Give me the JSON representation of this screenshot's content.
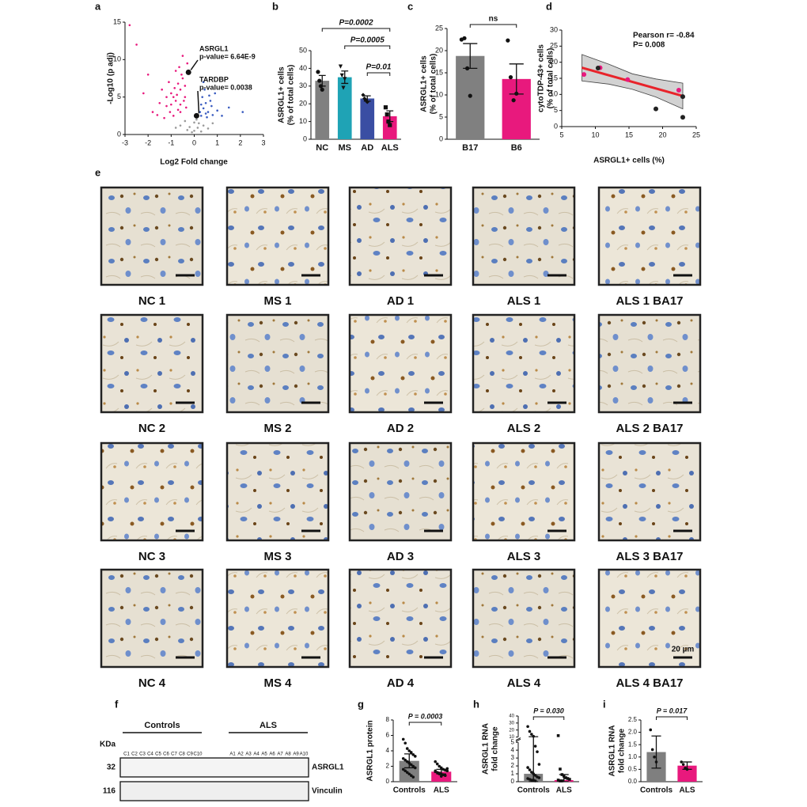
{
  "chart_data": [
    {
      "panel": "a",
      "type": "volcano",
      "xlabel": "Log2 Fold change",
      "ylabel": [
        "-Log10 (p adj)"
      ],
      "xlim": [
        -3,
        3
      ],
      "xticks": [
        -3,
        -2,
        -1,
        0,
        1,
        2,
        3
      ],
      "ylim": [
        0,
        15
      ],
      "yticks": [
        0,
        5,
        10,
        15
      ],
      "series": [
        {
          "color": "#e8197d",
          "x": [
            -0.6,
            -0.8,
            -1.0,
            -0.7,
            -0.5,
            -1.2,
            -1.5,
            -0.9,
            -0.4,
            -0.6,
            -1.8,
            -1.1,
            -0.8,
            -0.3,
            -0.5,
            -2.2,
            -2.5,
            -1.3,
            -0.6,
            -0.7,
            -1.0,
            -0.4,
            -0.9,
            -1.4,
            -2.0,
            -0.55,
            -0.35,
            -1.6,
            -0.75,
            -1.2,
            -0.45,
            -2.8,
            -0.65,
            -1.05,
            -0.85
          ],
          "y": [
            3,
            4.5,
            5.5,
            6.8,
            7.5,
            3.8,
            4.2,
            2.5,
            5,
            6,
            3,
            7,
            8.5,
            9.5,
            10.5,
            5.5,
            12,
            2.2,
            4,
            3.3,
            4,
            6.5,
            5,
            6,
            8,
            8,
            3.6,
            2.6,
            5.3,
            5,
            4.5,
            14.6,
            9,
            3,
            6.2
          ]
        },
        {
          "color": "#3a5cc0",
          "x": [
            0.3,
            0.4,
            0.5,
            0.6,
            0.8,
            0.35,
            0.7,
            1.0,
            0.45,
            0.3,
            0.55,
            1.2,
            0.9,
            0.25,
            0.65,
            1.5,
            0.4,
            0.5,
            0.75,
            2.1
          ],
          "y": [
            2.5,
            3.5,
            4.2,
            3,
            2.6,
            5,
            4.5,
            3.2,
            6,
            4,
            2.3,
            2.5,
            5.5,
            3,
            5.2,
            3.6,
            7,
            2.8,
            3.8,
            3
          ]
        },
        {
          "color": "#9a9a9a",
          "x": [
            -0.2,
            0,
            0.2,
            -0.4,
            0.4,
            0.1,
            -0.1,
            0.6,
            -0.6,
            0.3,
            -0.3,
            0.8,
            -0.8,
            0,
            0.15
          ],
          "y": [
            1,
            0.5,
            1.5,
            1.8,
            1.2,
            2,
            0.3,
            0.8,
            1.2,
            0.4,
            0.6,
            1.5,
            0.9,
            1.6,
            0.9
          ]
        }
      ],
      "highlights": [
        {
          "name": "ASRGL1",
          "label": "p-value= 6.64E-9",
          "x": -0.25,
          "y": 8.3
        },
        {
          "name": "TARDBP",
          "label": "p-value= 0.0038",
          "x": 0.1,
          "y": 2.5
        }
      ]
    },
    {
      "panel": "b",
      "type": "bar",
      "ylabel": [
        "ASRGL1+ cells",
        "(% of total cells)"
      ],
      "categories": [
        "NC",
        "MS",
        "AD",
        "ALS"
      ],
      "values": [
        33,
        35,
        23,
        13
      ],
      "errors": [
        3,
        3.5,
        1.5,
        3
      ],
      "colors": [
        "#808080",
        "#1fa3b5",
        "#3a4ea3",
        "#e8197d"
      ],
      "markers": [
        "circle",
        "triangle",
        "diamond",
        "square"
      ],
      "points": [
        [
          38,
          33,
          30,
          28
        ],
        [
          41,
          36,
          29,
          34
        ],
        [
          25,
          23,
          22,
          21
        ],
        [
          18,
          14,
          10,
          8
        ]
      ],
      "ylim": [
        0,
        50
      ],
      "yticks": [
        0,
        10,
        20,
        30,
        40,
        50
      ],
      "comparisons": [
        {
          "between": [
            "NC",
            "ALS"
          ],
          "label": "P=0.0002"
        },
        {
          "between": [
            "MS",
            "ALS"
          ],
          "label": "P=0.0005"
        },
        {
          "between": [
            "AD",
            "ALS"
          ],
          "label": "P=0.01"
        }
      ]
    },
    {
      "panel": "c",
      "type": "bar",
      "ylabel": [
        "ASRGL1+ cells",
        "(% of total cells)"
      ],
      "categories": [
        "B17",
        "B6"
      ],
      "values": [
        18.8,
        13.6
      ],
      "errors": [
        2.8,
        3.4
      ],
      "colors": [
        "#808080",
        "#e8197d"
      ],
      "markers": [
        "circle",
        "circle"
      ],
      "points": [
        [
          22.5,
          22.8,
          16,
          9.8
        ],
        [
          22.3,
          14,
          8.8,
          10.3
        ]
      ],
      "ylim": [
        0,
        25
      ],
      "yticks": [
        0,
        5,
        10,
        15,
        20,
        25
      ],
      "comparisons": [
        {
          "between": [
            "B17",
            "B6"
          ],
          "label": "ns"
        }
      ]
    },
    {
      "panel": "d",
      "type": "scatter",
      "xlabel": "ASRGL1+ cells (%)",
      "ylabel": [
        "cytoTDP-43+ cells",
        "(% of total cells)"
      ],
      "xlim": [
        5,
        25
      ],
      "xticks": [
        5,
        10,
        15,
        20,
        25
      ],
      "ylim": [
        0,
        30
      ],
      "yticks": [
        0,
        5,
        10,
        15,
        20,
        25,
        30
      ],
      "annotations": [
        "Pearson r= -0.84",
        "P= 0.008"
      ],
      "series": [
        {
          "color": "#e8197d",
          "x": [
            8.3,
            10.7,
            14.8,
            22.4
          ],
          "y": [
            16.2,
            18.3,
            14.6,
            11.3
          ]
        },
        {
          "color": "#222222",
          "x": [
            10.4,
            19.0,
            23.0,
            23.0
          ],
          "y": [
            18.2,
            5.5,
            9.3,
            2.9
          ]
        }
      ],
      "fit": {
        "color": "#e8232a",
        "x": [
          8,
          23
        ],
        "y": [
          18.3,
          9.5
        ]
      },
      "fit_band": {
        "x": [
          8,
          12,
          15.5,
          19,
          23
        ],
        "lower": [
          14.2,
          13.2,
          11.6,
          9.2,
          5.5
        ],
        "upper": [
          22.4,
          19.4,
          16.4,
          14.8,
          13.5
        ]
      }
    },
    {
      "panel": "g",
      "type": "bar",
      "ylabel": [
        "ASRGL1 protein"
      ],
      "categories": [
        "Controls",
        "ALS"
      ],
      "values": [
        2.7,
        1.3
      ],
      "errors": [
        0.9,
        0.3
      ],
      "colors": [
        "#7f7f7f",
        "#e8197d"
      ],
      "markers": [
        "circle",
        "circle"
      ],
      "points": [
        [
          5.5,
          5,
          4.3,
          4,
          3.8,
          3.5,
          3.3,
          3,
          2.8,
          2.6,
          2.4,
          2.2,
          2,
          1.8,
          1.6,
          1.4,
          1.2,
          1,
          0.8,
          0.6
        ],
        [
          2.6,
          2.3,
          2,
          1.8,
          1.6,
          1.5,
          1.4,
          1.3,
          1.2,
          1.1,
          1,
          0.9,
          0.8,
          1.7,
          1.4,
          1.2,
          1.0,
          0.7
        ]
      ],
      "ylim": [
        0,
        8
      ],
      "yticks": [
        0,
        2,
        4,
        6,
        8
      ],
      "comparisons": [
        {
          "between": [
            "Controls",
            "ALS"
          ],
          "label": "P = 0.0003"
        }
      ]
    },
    {
      "panel": "h",
      "type": "bar",
      "ylabel": [
        "ASRGL1 RNA",
        "fold change"
      ],
      "categories": [
        "Controls",
        "ALS"
      ],
      "values": [
        1.0,
        0.2
      ],
      "errors": [
        [
          1.0,
          9.5
        ],
        [
          0.2,
          0.7
        ]
      ],
      "colors": [
        "#7f7f7f",
        "#e8197d"
      ],
      "markers": [
        "circle",
        "square"
      ],
      "points": [
        [
          25,
          18,
          14,
          11,
          4.5,
          3.8,
          2.2,
          1.8,
          1.5,
          1.2,
          1,
          0.8,
          0.6,
          0.5,
          0.4,
          0.3,
          0.2,
          0.2,
          0.1
        ],
        [
          12,
          1.6,
          0.9,
          0.7,
          0.5,
          0.4,
          0.3,
          0.2,
          0.1,
          0.1
        ]
      ],
      "ylim": [
        0,
        40
      ],
      "axis_break": [
        5,
        10
      ],
      "yticks": [
        0,
        1,
        2,
        3,
        4,
        5,
        10,
        20,
        30,
        40
      ],
      "comparisons": [
        {
          "between": [
            "Controls",
            "ALS"
          ],
          "label": "P = 0.030"
        }
      ]
    },
    {
      "panel": "i",
      "type": "bar",
      "ylabel": [
        "ASRGL1 RNA",
        "fold change"
      ],
      "categories": [
        "Controls",
        "ALS"
      ],
      "values": [
        1.2,
        0.65
      ],
      "errors": [
        0.65,
        0.15
      ],
      "colors": [
        "#7f7f7f",
        "#e8197d"
      ],
      "markers": [
        "circle",
        "circle"
      ],
      "points": [
        [
          2.1,
          1.3,
          1.0,
          0.8
        ],
        [
          0.8,
          0.7,
          0.55,
          0.5
        ]
      ],
      "ylim": [
        0,
        2.5
      ],
      "yticks": [
        {
          "value": 0,
          "label": "0.0"
        },
        {
          "value": 0.5,
          "label": "0.5"
        },
        {
          "value": 1,
          "label": "1.0"
        },
        {
          "value": 1.5,
          "label": "1.5"
        },
        {
          "value": 2,
          "label": "2.0"
        },
        {
          "value": 2.5,
          "label": "2.5"
        }
      ],
      "comparisons": [
        {
          "between": [
            "Controls",
            "ALS"
          ],
          "label": "P = 0.017"
        }
      ]
    }
  ],
  "micrographs": {
    "panel": "e",
    "scale_bar": "20 µm",
    "labels": [
      "NC 1",
      "MS 1",
      "AD 1",
      "ALS 1",
      "ALS 1 BA17",
      "NC 2",
      "MS 2",
      "AD 2",
      "ALS 2",
      "ALS 2 BA17",
      "NC 3",
      "MS 3",
      "AD 3",
      "ALS 3",
      "ALS 3 BA17",
      "NC 4",
      "MS 4",
      "AD 4",
      "ALS 4",
      "ALS 4 BA17"
    ]
  },
  "blot": {
    "panel": "f",
    "unit": "KDa",
    "groups": [
      "Controls",
      "ALS"
    ],
    "lanes": [
      [
        "C1",
        "C2",
        "C3",
        "C4",
        "C5",
        "C6",
        "C7",
        "C8",
        "C9",
        "C10"
      ],
      [
        "A1",
        "A2",
        "A3",
        "A4",
        "A5",
        "A6",
        "A7",
        "A8",
        "A9",
        "A10"
      ]
    ],
    "rows": [
      {
        "kda": 32,
        "name": "ASRGL1"
      },
      {
        "kda": 116,
        "name": "Vinculin"
      }
    ]
  }
}
